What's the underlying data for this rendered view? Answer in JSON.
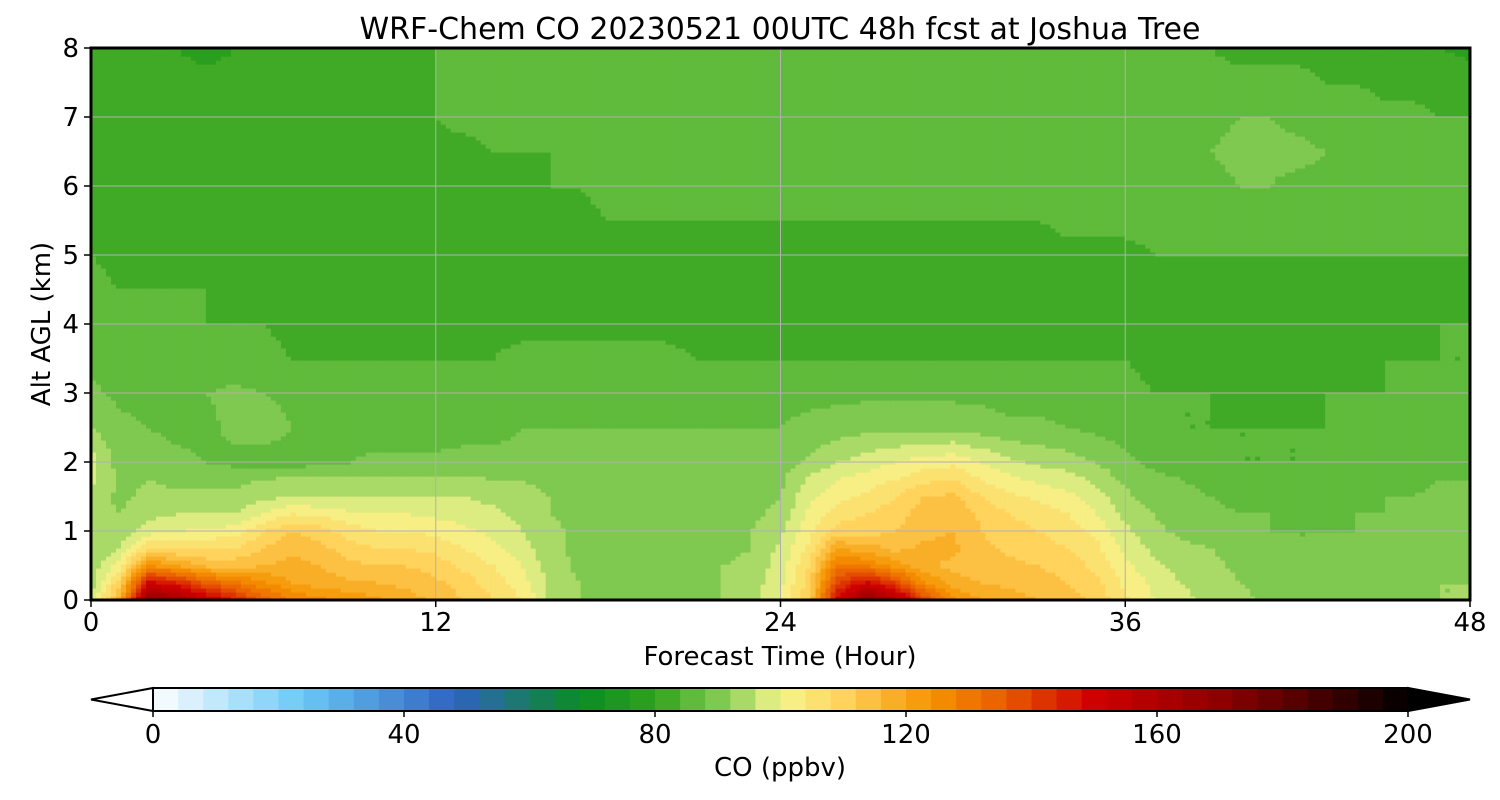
{
  "chart_data": {
    "type": "heatmap",
    "title": "WRF-Chem CO  20230521 00UTC 48h fcst at Joshua Tree",
    "xlabel": "Forecast Time (Hour)",
    "ylabel": "Alt AGL (km)",
    "xlim": [
      0,
      48
    ],
    "ylim": [
      0,
      8
    ],
    "x_ticks": [
      0,
      12,
      24,
      36,
      48
    ],
    "y_ticks": [
      0,
      1,
      2,
      3,
      4,
      5,
      6,
      7,
      8
    ],
    "grid": true,
    "colorbar": {
      "label": "CO  (ppbv)",
      "range": [
        0,
        200
      ],
      "step": 4,
      "ticks": [
        0,
        40,
        80,
        120,
        160,
        200
      ],
      "extend": "both",
      "color_stops": [
        {
          "v": 0,
          "c": "#ffffff"
        },
        {
          "v": 24,
          "c": "#6ac8f5"
        },
        {
          "v": 48,
          "c": "#2f62c0"
        },
        {
          "v": 68,
          "c": "#0a8c26"
        },
        {
          "v": 80,
          "c": "#30a21c"
        },
        {
          "v": 92,
          "c": "#8fd15a"
        },
        {
          "v": 100,
          "c": "#f5f58e"
        },
        {
          "v": 110,
          "c": "#ffd35c"
        },
        {
          "v": 124,
          "c": "#f59300"
        },
        {
          "v": 136,
          "c": "#e85a00"
        },
        {
          "v": 150,
          "c": "#cf0000"
        },
        {
          "v": 170,
          "c": "#8e0000"
        },
        {
          "v": 190,
          "c": "#300000"
        },
        {
          "v": 200,
          "c": "#000000"
        }
      ]
    },
    "field": {
      "x": [
        0,
        1,
        2,
        3,
        4,
        5,
        6,
        7,
        8,
        9,
        10,
        11,
        12,
        13,
        14,
        15,
        16,
        17,
        18,
        19,
        20,
        21,
        22,
        23,
        24,
        25,
        26,
        27,
        28,
        29,
        30,
        31,
        32,
        33,
        34,
        35,
        36,
        37,
        38,
        39,
        40,
        41,
        42,
        43,
        44,
        45,
        46,
        47,
        48
      ],
      "y": [
        0,
        0.25,
        0.5,
        0.75,
        1,
        1.25,
        1.5,
        1.75,
        2,
        2.5,
        3,
        3.5,
        4,
        4.5,
        5,
        5.5,
        6,
        6.5,
        7,
        7.5,
        8
      ],
      "z": [
        [
          95,
          120,
          170,
          165,
          155,
          145,
          135,
          128,
          125,
          123,
          121,
          118,
          115,
          112,
          108,
          104,
          95,
          92,
          91,
          91,
          91,
          91,
          92,
          94,
          100,
          112,
          150,
          170,
          160,
          140,
          125,
          120,
          118,
          116,
          114,
          111,
          105,
          100,
          97,
          95,
          93,
          91,
          90,
          90,
          90,
          91,
          91,
          92,
          92
        ],
        [
          94,
          110,
          150,
          145,
          135,
          130,
          125,
          120,
          118,
          117,
          116,
          115,
          113,
          110,
          106,
          102,
          95,
          92,
          91,
          91,
          91,
          91,
          92,
          94,
          99,
          110,
          140,
          150,
          140,
          125,
          118,
          116,
          115,
          114,
          112,
          109,
          103,
          99,
          96,
          94,
          92,
          91,
          90,
          90,
          90,
          91,
          91,
          92,
          92
        ],
        [
          93,
          102,
          125,
          120,
          115,
          115,
          116,
          118,
          116,
          113,
          112,
          112,
          110,
          107,
          104,
          100,
          94,
          91,
          91,
          91,
          91,
          91,
          92,
          93,
          98,
          108,
          130,
          128,
          122,
          117,
          115,
          114,
          113,
          112,
          110,
          107,
          101,
          97,
          94,
          93,
          91,
          90,
          89,
          89,
          89,
          90,
          91,
          91,
          92
        ],
        [
          92,
          96,
          108,
          108,
          108,
          108,
          112,
          115,
          113,
          110,
          108,
          108,
          107,
          104,
          101,
          98,
          93,
          91,
          91,
          91,
          91,
          91,
          91,
          92,
          97,
          105,
          120,
          118,
          115,
          117,
          117,
          113,
          111,
          110,
          108,
          105,
          99,
          95,
          93,
          92,
          90,
          89,
          88,
          88,
          89,
          90,
          90,
          91,
          91
        ],
        [
          92,
          93,
          98,
          100,
          101,
          102,
          108,
          112,
          110,
          106,
          104,
          104,
          103,
          101,
          99,
          96,
          93,
          91,
          91,
          91,
          91,
          91,
          91,
          92,
          95,
          103,
          110,
          110,
          112,
          115,
          116,
          112,
          110,
          108,
          106,
          103,
          97,
          93,
          91,
          90,
          89,
          88,
          88,
          88,
          88,
          89,
          90,
          90,
          91
        ],
        [
          93,
          92,
          95,
          96,
          96,
          96,
          100,
          104,
          103,
          101,
          100,
          100,
          99,
          98,
          97,
          95,
          92,
          91,
          91,
          91,
          91,
          91,
          91,
          91,
          93,
          101,
          106,
          108,
          110,
          114,
          115,
          111,
          108,
          106,
          104,
          100,
          95,
          92,
          90,
          89,
          88,
          88,
          87,
          87,
          88,
          88,
          89,
          90,
          90
        ],
        [
          95,
          91,
          93,
          93,
          93,
          93,
          95,
          96,
          96,
          96,
          96,
          96,
          96,
          96,
          95,
          93,
          92,
          91,
          91,
          91,
          91,
          91,
          91,
          91,
          92,
          99,
          103,
          105,
          108,
          112,
          113,
          108,
          105,
          103,
          101,
          98,
          93,
          90,
          89,
          88,
          87,
          87,
          87,
          87,
          87,
          88,
          88,
          89,
          89
        ],
        [
          97,
          91,
          92,
          91,
          91,
          91,
          92,
          93,
          93,
          93,
          93,
          93,
          93,
          93,
          92,
          92,
          91,
          90,
          90,
          90,
          90,
          90,
          90,
          90,
          91,
          97,
          100,
          102,
          104,
          107,
          108,
          104,
          101,
          99,
          98,
          95,
          91,
          89,
          88,
          87,
          86,
          86,
          86,
          86,
          86,
          87,
          87,
          88,
          88
        ],
        [
          98,
          90,
          90,
          89,
          88,
          87,
          86,
          86,
          87,
          88,
          89,
          89,
          89,
          89,
          89,
          89,
          89,
          89,
          89,
          89,
          89,
          89,
          89,
          89,
          90,
          93,
          96,
          98,
          100,
          102,
          103,
          100,
          97,
          95,
          94,
          92,
          89,
          87,
          86,
          85,
          84,
          84,
          84,
          85,
          85,
          86,
          86,
          87,
          87
        ],
        [
          92,
          89,
          88,
          87,
          87,
          89,
          90,
          88,
          87,
          86,
          86,
          86,
          86,
          87,
          87,
          88,
          88,
          88,
          88,
          88,
          88,
          88,
          88,
          88,
          88,
          89,
          90,
          91,
          91,
          91,
          91,
          90,
          89,
          89,
          88,
          87,
          86,
          85,
          84,
          84,
          84,
          84,
          84,
          84,
          85,
          85,
          86,
          86,
          86
        ],
        [
          89,
          87,
          87,
          86,
          88,
          89,
          88,
          87,
          86,
          85,
          85,
          85,
          85,
          86,
          86,
          87,
          87,
          87,
          87,
          87,
          87,
          87,
          87,
          87,
          87,
          87,
          87,
          87,
          87,
          87,
          87,
          87,
          86,
          86,
          86,
          86,
          85,
          84,
          84,
          84,
          83,
          83,
          83,
          84,
          84,
          84,
          85,
          85,
          85
        ],
        [
          87,
          86,
          86,
          86,
          85,
          85,
          85,
          84,
          84,
          84,
          84,
          84,
          84,
          84,
          84,
          85,
          85,
          85,
          85,
          85,
          85,
          84,
          84,
          84,
          84,
          84,
          84,
          84,
          84,
          84,
          84,
          84,
          84,
          84,
          84,
          84,
          84,
          83,
          83,
          83,
          83,
          83,
          83,
          83,
          83,
          84,
          84,
          84,
          84
        ],
        [
          86,
          85,
          85,
          85,
          84,
          84,
          84,
          83,
          83,
          83,
          83,
          83,
          83,
          83,
          83,
          83,
          83,
          83,
          83,
          83,
          83,
          83,
          82,
          82,
          82,
          82,
          82,
          82,
          82,
          82,
          82,
          82,
          82,
          82,
          82,
          82,
          82,
          82,
          82,
          82,
          83,
          83,
          83,
          83,
          83,
          83,
          83,
          84,
          84
        ],
        [
          85,
          84,
          84,
          84,
          84,
          83,
          83,
          83,
          82,
          82,
          82,
          82,
          82,
          82,
          82,
          82,
          82,
          82,
          82,
          82,
          83,
          83,
          82,
          82,
          82,
          82,
          82,
          82,
          82,
          81,
          81,
          81,
          81,
          81,
          82,
          82,
          82,
          82,
          82,
          82,
          83,
          83,
          83,
          83,
          83,
          83,
          83,
          83,
          83
        ],
        [
          84,
          83,
          83,
          83,
          83,
          82,
          82,
          82,
          82,
          82,
          82,
          82,
          82,
          82,
          82,
          82,
          82,
          83,
          83,
          83,
          83,
          83,
          83,
          82,
          82,
          82,
          82,
          82,
          82,
          82,
          82,
          82,
          82,
          82,
          83,
          83,
          83,
          84,
          84,
          84,
          84,
          84,
          84,
          84,
          84,
          84,
          84,
          84,
          84
        ],
        [
          83,
          83,
          83,
          83,
          82,
          82,
          82,
          82,
          82,
          82,
          82,
          82,
          82,
          82,
          82,
          83,
          83,
          83,
          84,
          84,
          84,
          84,
          84,
          84,
          84,
          84,
          84,
          84,
          84,
          84,
          84,
          84,
          84,
          84,
          85,
          85,
          85,
          85,
          85,
          85,
          85,
          85,
          85,
          85,
          85,
          85,
          85,
          85,
          85
        ],
        [
          82,
          82,
          82,
          82,
          82,
          82,
          82,
          82,
          82,
          82,
          82,
          82,
          83,
          83,
          83,
          83,
          84,
          84,
          85,
          85,
          85,
          85,
          85,
          85,
          85,
          85,
          85,
          85,
          85,
          85,
          85,
          85,
          85,
          86,
          86,
          86,
          86,
          87,
          87,
          87,
          88,
          88,
          87,
          87,
          87,
          86,
          86,
          86,
          86
        ],
        [
          82,
          82,
          82,
          82,
          82,
          82,
          82,
          82,
          82,
          82,
          82,
          83,
          83,
          83,
          84,
          84,
          84,
          85,
          85,
          85,
          85,
          85,
          85,
          85,
          85,
          85,
          85,
          85,
          85,
          86,
          86,
          86,
          86,
          86,
          86,
          87,
          87,
          87,
          88,
          88,
          89,
          89,
          89,
          88,
          88,
          87,
          87,
          86,
          86
        ],
        [
          82,
          82,
          82,
          82,
          82,
          82,
          82,
          82,
          82,
          82,
          82,
          83,
          84,
          85,
          85,
          85,
          85,
          85,
          85,
          85,
          85,
          85,
          85,
          85,
          85,
          85,
          85,
          85,
          85,
          85,
          85,
          85,
          85,
          85,
          85,
          86,
          86,
          86,
          86,
          87,
          88,
          88,
          87,
          86,
          86,
          85,
          85,
          84,
          84
        ],
        [
          82,
          82,
          81,
          81,
          81,
          81,
          81,
          82,
          82,
          82,
          82,
          83,
          84,
          85,
          85,
          86,
          86,
          86,
          86,
          86,
          86,
          86,
          86,
          86,
          86,
          85,
          85,
          85,
          85,
          85,
          85,
          85,
          85,
          85,
          85,
          85,
          85,
          85,
          85,
          85,
          85,
          85,
          85,
          84,
          84,
          83,
          83,
          82,
          82
        ],
        [
          82,
          81,
          80,
          80,
          79,
          80,
          80,
          81,
          82,
          82,
          83,
          84,
          84,
          85,
          85,
          86,
          86,
          86,
          86,
          86,
          86,
          86,
          86,
          86,
          86,
          85,
          85,
          85,
          85,
          85,
          85,
          85,
          85,
          85,
          84,
          84,
          84,
          84,
          84,
          84,
          83,
          83,
          83,
          83,
          82,
          82,
          81,
          80,
          79
        ]
      ]
    }
  }
}
